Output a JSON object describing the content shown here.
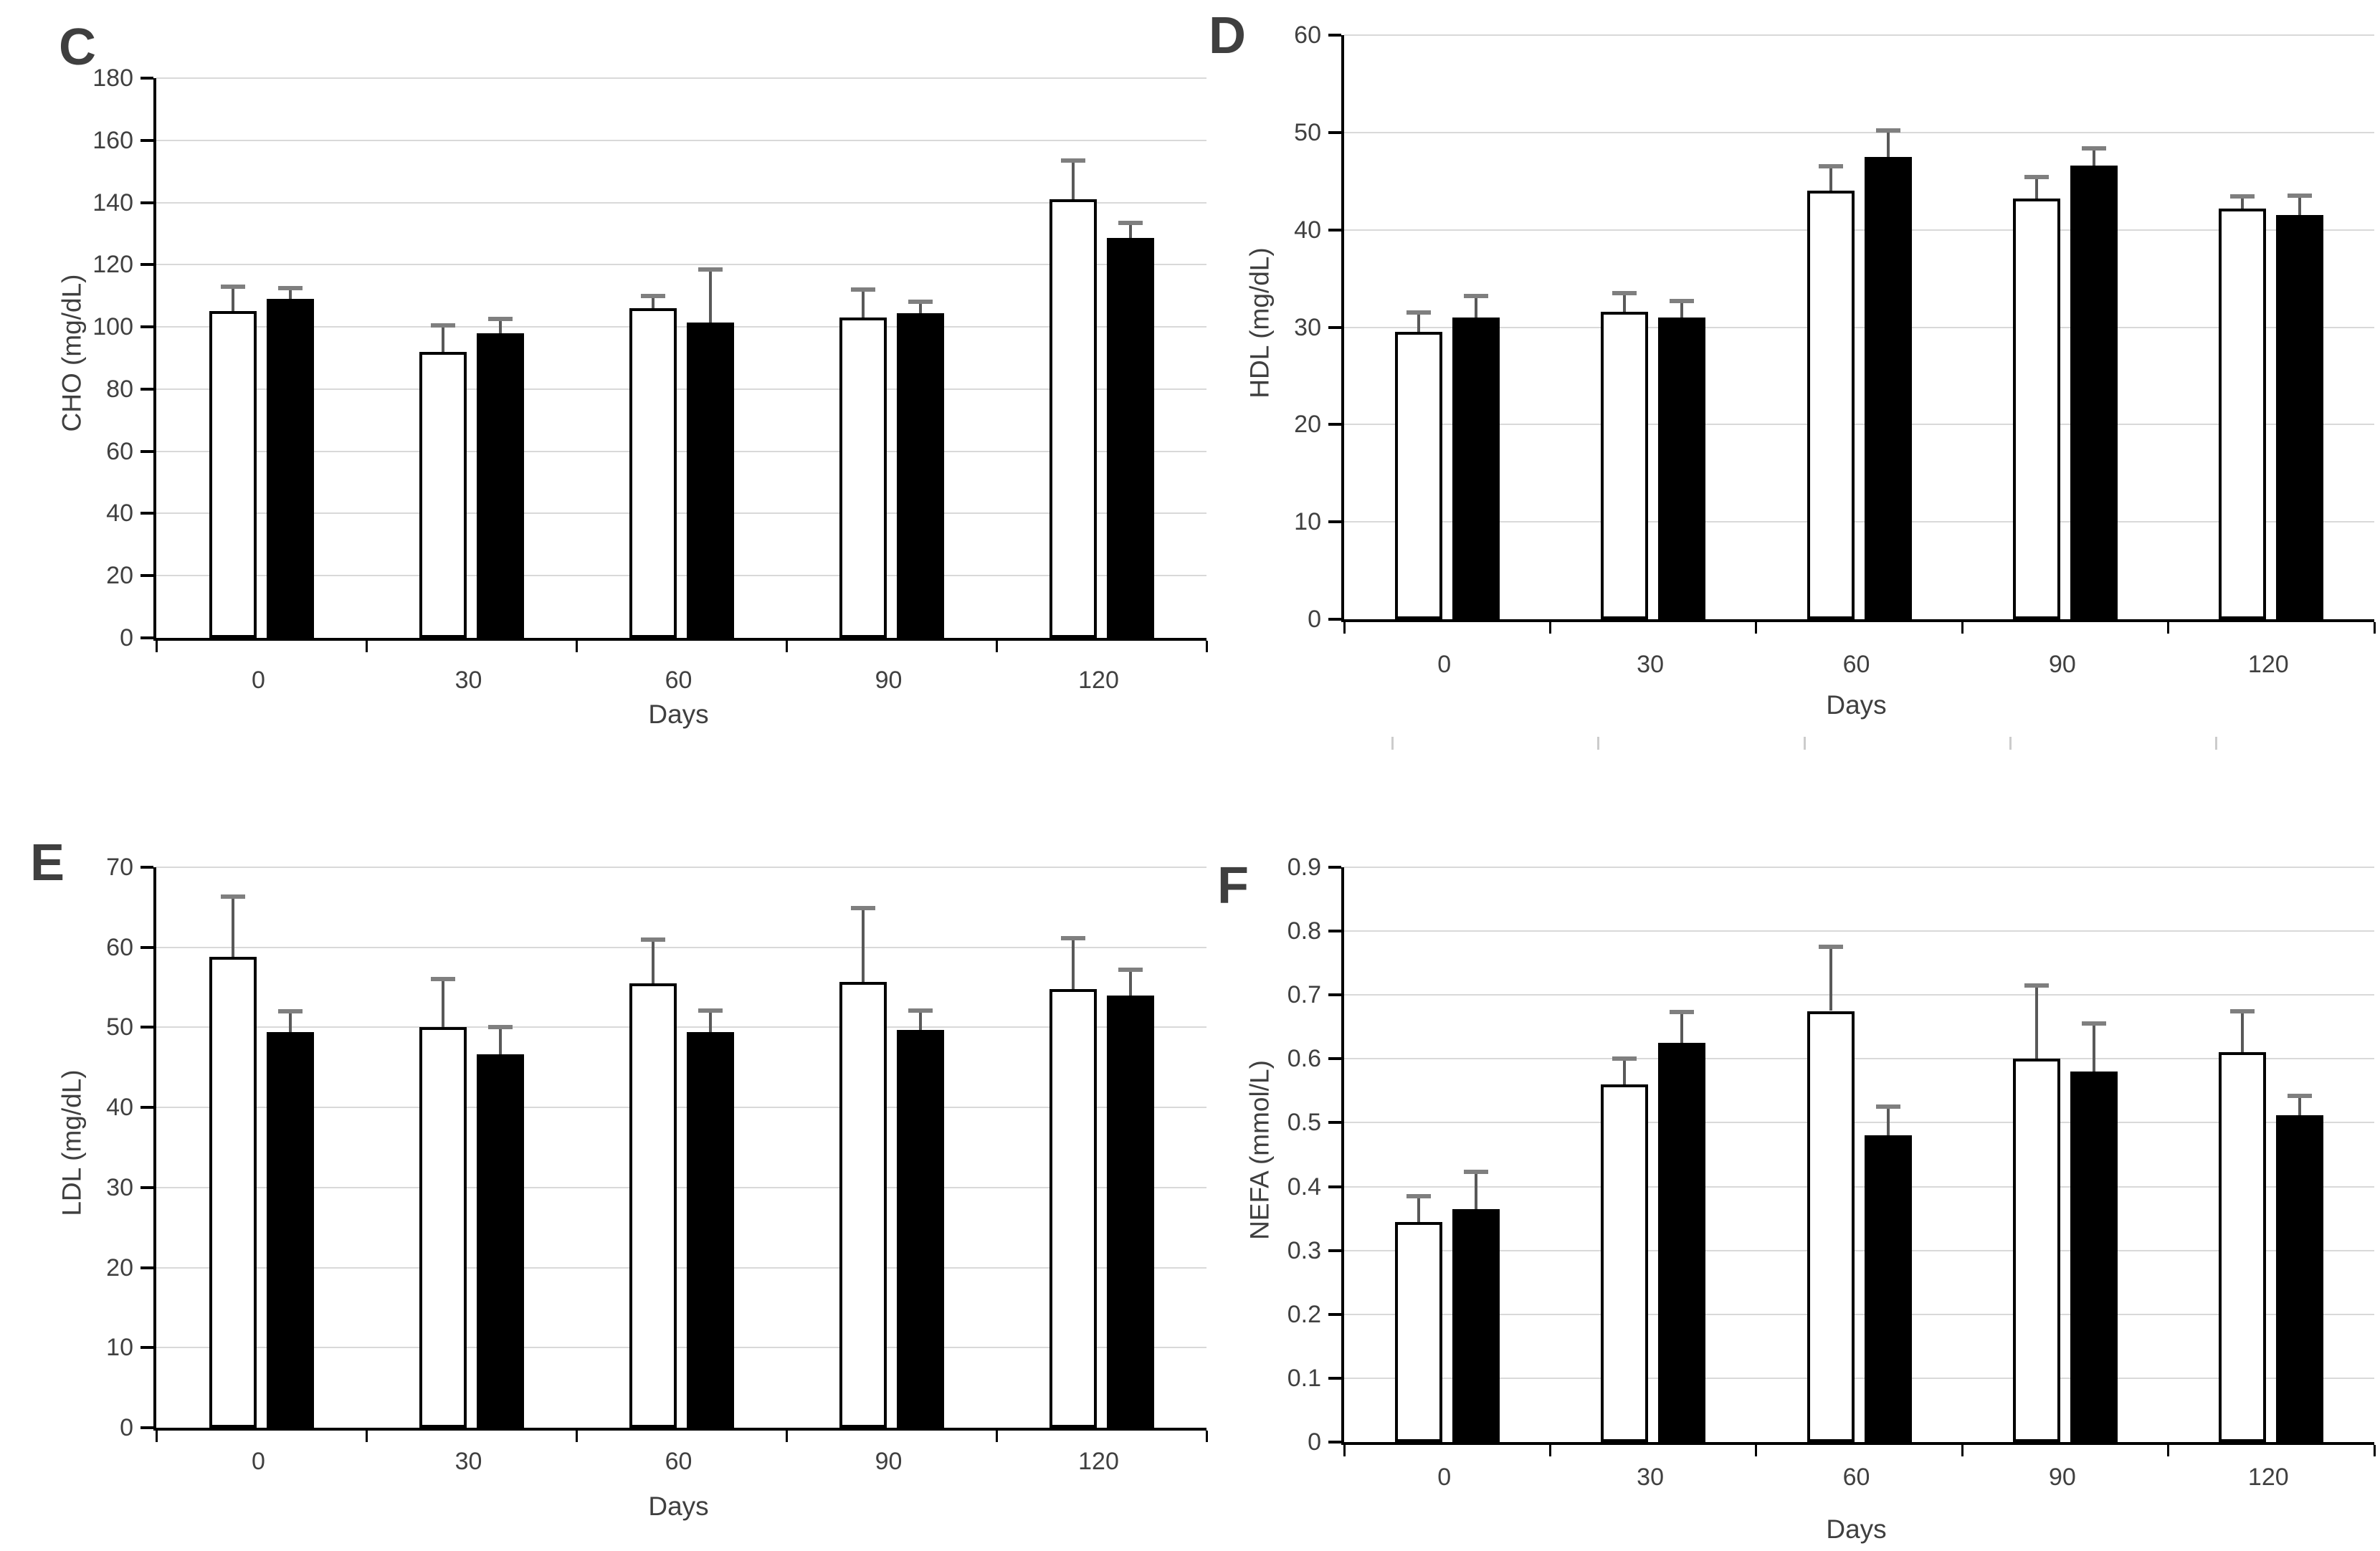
{
  "figure": {
    "background": "#ffffff",
    "description": "Four-panel bar chart figure, panels C, D, E, F; each panel compares an open (white) bar series and a filled (black) bar series with error bars over time (Days 0-120)."
  },
  "colors": {
    "bar_open_fill": "#ffffff",
    "bar_open_border": "#000000",
    "bar_filled_fill": "#000000",
    "error_line": "#595959",
    "error_cap": "#7f7f7f",
    "gridline": "#d9d9d9",
    "axis": "#000000",
    "text": "#3f3f3f"
  },
  "chart_data": [
    {
      "type": "bar",
      "panel_label": "C",
      "ylabel": "CHO (mg/dL)",
      "xlabel": "Days",
      "ylim": [
        0,
        180
      ],
      "ytick_step": 20,
      "ytick_labels": [
        "0",
        "20",
        "40",
        "60",
        "80",
        "100",
        "120",
        "140",
        "160",
        "180"
      ],
      "categories": [
        "0",
        "30",
        "60",
        "90",
        "120"
      ],
      "grid": true,
      "legend": "none",
      "series": [
        {
          "name": "open-bars",
          "values": [
            105,
            92,
            106,
            103,
            141
          ],
          "errors_plus": [
            8,
            8.5,
            4,
            9,
            12.5
          ]
        },
        {
          "name": "filled-bars",
          "values": [
            109,
            98,
            101.5,
            104.5,
            128.5
          ],
          "errors_plus": [
            3.5,
            4.5,
            17,
            3.5,
            5
          ]
        }
      ]
    },
    {
      "type": "bar",
      "panel_label": "D",
      "ylabel": "HDL (mg/dL)",
      "xlabel": "Days",
      "ylim": [
        0,
        60
      ],
      "ytick_step": 10,
      "ytick_labels": [
        "0",
        "10",
        "20",
        "30",
        "40",
        "50",
        "60"
      ],
      "categories": [
        "0",
        "30",
        "60",
        "90",
        "120"
      ],
      "grid": true,
      "legend": "none",
      "series": [
        {
          "name": "open-bars",
          "values": [
            29.5,
            31.6,
            44,
            43.2,
            42.2
          ],
          "errors_plus": [
            2,
            1.9,
            2.5,
            2.2,
            1.2
          ]
        },
        {
          "name": "filled-bars",
          "values": [
            31,
            31,
            47.5,
            46.6,
            41.5
          ],
          "errors_plus": [
            2.2,
            1.7,
            2.7,
            1.8,
            2
          ]
        }
      ]
    },
    {
      "type": "bar",
      "panel_label": "E",
      "ylabel": "LDL (mg/dL)",
      "xlabel": "Days",
      "ylim": [
        0,
        70
      ],
      "ytick_step": 10,
      "ytick_labels": [
        "0",
        "10",
        "20",
        "30",
        "40",
        "50",
        "60",
        "70"
      ],
      "categories": [
        "0",
        "30",
        "60",
        "90",
        "120"
      ],
      "grid": true,
      "legend": "none",
      "series": [
        {
          "name": "open-bars",
          "values": [
            58.8,
            50,
            55.5,
            55.7,
            54.8
          ],
          "errors_plus": [
            7.5,
            6,
            5.5,
            9.2,
            6.3
          ]
        },
        {
          "name": "filled-bars",
          "values": [
            49.4,
            46.6,
            49.4,
            49.7,
            54
          ],
          "errors_plus": [
            2.6,
            3.4,
            2.7,
            2.4,
            3.2
          ]
        }
      ]
    },
    {
      "type": "bar",
      "panel_label": "F",
      "ylabel": "NEFA (mmol/L)",
      "xlabel": "Days",
      "ylim": [
        0,
        0.9
      ],
      "ytick_step": 0.1,
      "ytick_labels": [
        "0",
        "0.1",
        "0.2",
        "0.3",
        "0.4",
        "0.5",
        "0.6",
        "0.7",
        "0.8",
        "0.9"
      ],
      "categories": [
        "0",
        "30",
        "60",
        "90",
        "120"
      ],
      "grid": true,
      "legend": "none",
      "series": [
        {
          "name": "open-bars",
          "values": [
            0.345,
            0.56,
            0.675,
            0.6,
            0.61
          ],
          "errors_plus": [
            0.04,
            0.04,
            0.1,
            0.115,
            0.065
          ]
        },
        {
          "name": "filled-bars",
          "values": [
            0.365,
            0.625,
            0.48,
            0.58,
            0.512
          ],
          "errors_plus": [
            0.058,
            0.048,
            0.045,
            0.075,
            0.03
          ]
        }
      ]
    }
  ]
}
